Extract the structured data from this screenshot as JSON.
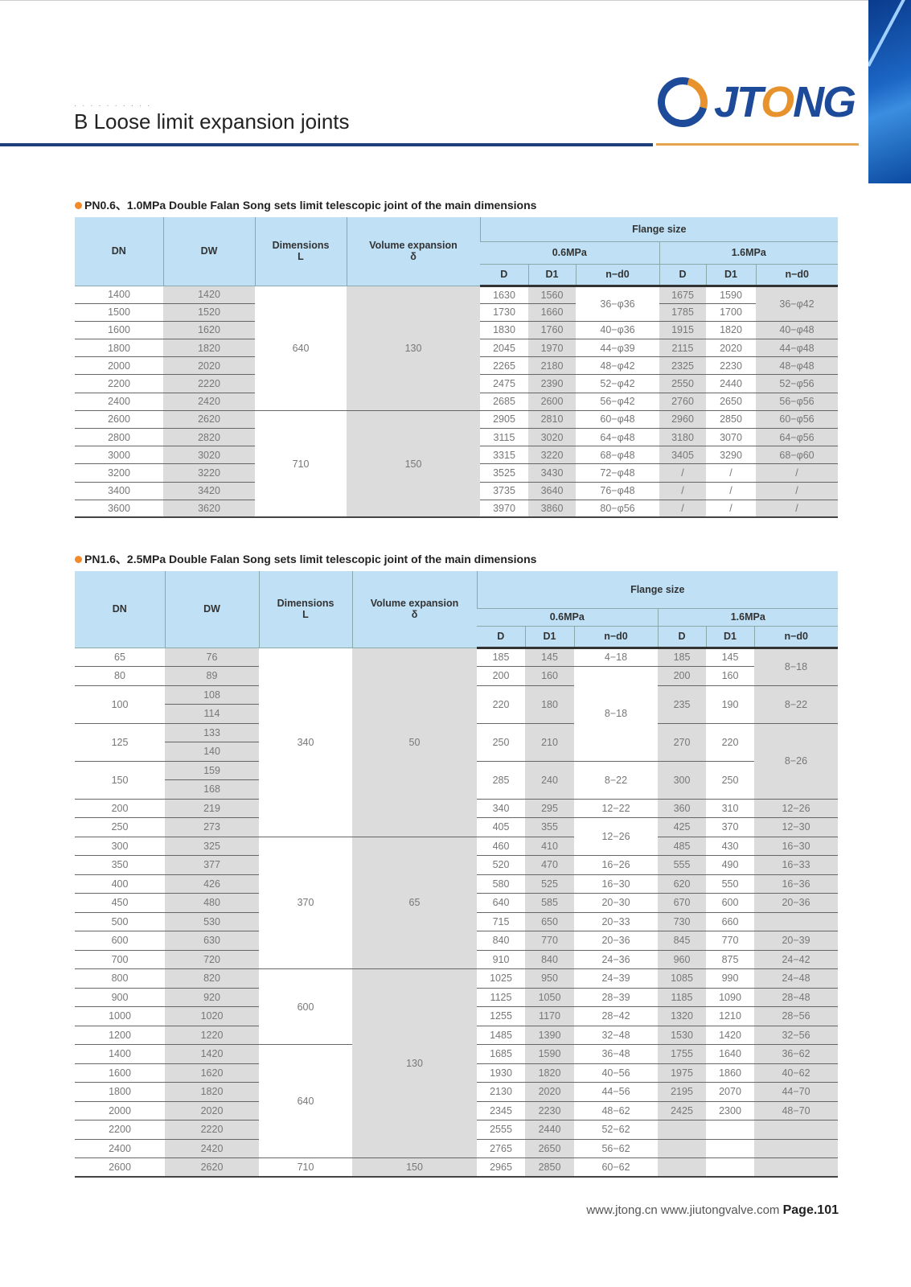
{
  "header": {
    "faint_subtitle": "· · ·  · ·  ·  · · · ·",
    "title": "B Loose limit expansion joints",
    "logo_text": "JTONG",
    "colors": {
      "blue": "#1e3f7c",
      "orange": "#e6a450",
      "header_cell": "#bfe0f5",
      "shade": "#dcdcdc"
    }
  },
  "tables": [
    {
      "title": "PN0.6、1.0MPa Double Falan Song sets limit telescopic joint of the main dimensions",
      "headers": {
        "dn": "DN",
        "dw": "DW",
        "dim": "Dimensions",
        "dim_sub": "L",
        "vol": "Volume expansion",
        "vol_sub": "δ",
        "flange": "Flange size",
        "p1": "0.6MPa",
        "p2": "1.6MPa",
        "d": "D",
        "d1": "D1",
        "nd0": "n−d0"
      },
      "rows": [
        [
          "1400",
          "1420",
          {
            "v": "640",
            "rs": 7
          },
          {
            "v": "130",
            "rs": 7
          },
          "1630",
          "1560",
          {
            "v": "36−φ36",
            "rs": 2
          },
          "1675",
          "1590",
          {
            "v": "36−φ42",
            "rs": 2
          }
        ],
        [
          "1500",
          "1520",
          "1730",
          "1660",
          "1785",
          "1700"
        ],
        [
          "1600",
          "1620",
          "1830",
          "1760",
          "40−φ36",
          "1915",
          "1820",
          "40−φ48"
        ],
        [
          "1800",
          "1820",
          "2045",
          "1970",
          "44−φ39",
          "2115",
          "2020",
          "44−φ48"
        ],
        [
          "2000",
          "2020",
          "2265",
          "2180",
          "48−φ42",
          "2325",
          "2230",
          "48−φ48"
        ],
        [
          "2200",
          "2220",
          "2475",
          "2390",
          "52−φ42",
          "2550",
          "2440",
          "52−φ56"
        ],
        [
          "2400",
          "2420",
          "2685",
          "2600",
          "56−φ42",
          "2760",
          "2650",
          "56−φ56"
        ],
        [
          "2600",
          "2620",
          {
            "v": "710",
            "rs": 6
          },
          {
            "v": "150",
            "rs": 6
          },
          "2905",
          "2810",
          "60−φ48",
          "2960",
          "2850",
          "60−φ56"
        ],
        [
          "2800",
          "2820",
          "3115",
          "3020",
          "64−φ48",
          "3180",
          "3070",
          "64−φ56"
        ],
        [
          "3000",
          "3020",
          "3315",
          "3220",
          "68−φ48",
          "3405",
          "3290",
          "68−φ60"
        ],
        [
          "3200",
          "3220",
          "3525",
          "3430",
          "72−φ48",
          "/",
          "/",
          "/"
        ],
        [
          "3400",
          "3420",
          "3735",
          "3640",
          "76−φ48",
          "/",
          "/",
          "/"
        ],
        [
          "3600",
          "3620",
          "3970",
          "3860",
          "80−φ56",
          "/",
          "/",
          "/"
        ]
      ]
    },
    {
      "title": "PN1.6、2.5MPa Double Falan Song sets limit telescopic joint of the main dimensions",
      "headers": {
        "dn": "DN",
        "dw": "DW",
        "dim": "Dimensions",
        "dim_sub": "L",
        "vol": "Volume expansion",
        "vol_sub": "δ",
        "flange": "Flange size",
        "p1": "0.6MPa",
        "p2": "1.6MPa",
        "d": "D",
        "d1": "D1",
        "nd0": "n−d0"
      },
      "rows": [
        [
          "65",
          "76",
          {
            "v": "340",
            "rs": 10
          },
          {
            "v": "50",
            "rs": 10
          },
          "185",
          "145",
          "4−18",
          "185",
          "145",
          {
            "v": "8−18",
            "rs": 2
          }
        ],
        [
          "80",
          "89",
          "200",
          "160",
          {
            "v": "8−18",
            "rs": 5
          },
          "200",
          "160"
        ],
        [
          {
            "v": "100",
            "rs": 2
          },
          "108",
          {
            "v": "220",
            "rs": 2
          },
          {
            "v": "180",
            "rs": 2
          },
          {
            "v": "235",
            "rs": 2
          },
          {
            "v": "190",
            "rs": 2
          },
          {
            "v": "8−22",
            "rs": 2
          }
        ],
        [
          "114"
        ],
        [
          {
            "v": "125",
            "rs": 2
          },
          "133",
          {
            "v": "250",
            "rs": 2
          },
          {
            "v": "210",
            "rs": 2
          },
          {
            "v": "270",
            "rs": 2
          },
          {
            "v": "220",
            "rs": 2
          },
          {
            "v": "8−26",
            "rs": 4
          }
        ],
        [
          "140"
        ],
        [
          {
            "v": "150",
            "rs": 2
          },
          "159",
          {
            "v": "285",
            "rs": 2
          },
          {
            "v": "240",
            "rs": 2
          },
          {
            "v": "8−22",
            "rs": 2
          },
          {
            "v": "300",
            "rs": 2
          },
          {
            "v": "250",
            "rs": 2
          }
        ],
        [
          "168"
        ],
        [
          "200",
          "219",
          "340",
          "295",
          "12−22",
          "360",
          "310",
          "12−26"
        ],
        [
          "250",
          "273",
          "405",
          "355",
          {
            "v": "12−26",
            "rs": 2
          },
          "425",
          "370",
          "12−30"
        ],
        [
          "300",
          "325",
          {
            "v": "370",
            "rs": 7
          },
          {
            "v": "65",
            "rs": 7
          },
          "460",
          "410",
          "485",
          "430",
          "16−30"
        ],
        [
          "350",
          "377",
          "520",
          "470",
          "16−26",
          "555",
          "490",
          "16−33"
        ],
        [
          "400",
          "426",
          "580",
          "525",
          "16−30",
          "620",
          "550",
          "16−36"
        ],
        [
          "450",
          "480",
          "640",
          "585",
          "20−30",
          "670",
          "600",
          "20−36"
        ],
        [
          "500",
          "530",
          "715",
          "650",
          "20−33",
          "730",
          "660",
          ""
        ],
        [
          "600",
          "630",
          "840",
          "770",
          "20−36",
          "845",
          "770",
          "20−39"
        ],
        [
          "700",
          "720",
          "910",
          "840",
          "24−36",
          "960",
          "875",
          "24−42"
        ],
        [
          "800",
          "820",
          {
            "v": "600",
            "rs": 4
          },
          {
            "v": "130",
            "rs": 10
          },
          "1025",
          "950",
          "24−39",
          "1085",
          "990",
          "24−48"
        ],
        [
          "900",
          "920",
          "1125",
          "1050",
          "28−39",
          "1185",
          "1090",
          "28−48"
        ],
        [
          "1000",
          "1020",
          "1255",
          "1170",
          "28−42",
          "1320",
          "1210",
          "28−56"
        ],
        [
          "1200",
          "1220",
          "1485",
          "1390",
          "32−48",
          "1530",
          "1420",
          "32−56"
        ],
        [
          "1400",
          "1420",
          {
            "v": "640",
            "rs": 6
          },
          "1685",
          "1590",
          "36−48",
          "1755",
          "1640",
          "36−62"
        ],
        [
          "1600",
          "1620",
          "1930",
          "1820",
          "40−56",
          "1975",
          "1860",
          "40−62"
        ],
        [
          "1800",
          "1820",
          "2130",
          "2020",
          "44−56",
          "2195",
          "2070",
          "44−70"
        ],
        [
          "2000",
          "2020",
          "2345",
          "2230",
          "48−62",
          "2425",
          "2300",
          "48−70"
        ],
        [
          "2200",
          "2220",
          "2555",
          "2440",
          "52−62",
          "",
          "",
          ""
        ],
        [
          "2400",
          "2420",
          "2765",
          "2650",
          "56−62",
          "",
          "",
          ""
        ],
        [
          "2600",
          "2620",
          "710",
          "150",
          "2965",
          "2850",
          "60−62",
          "",
          "",
          ""
        ]
      ]
    }
  ],
  "footer": {
    "sites": "www.jtong.cn  www.jiutongvalve.com",
    "page": "Page.101"
  }
}
